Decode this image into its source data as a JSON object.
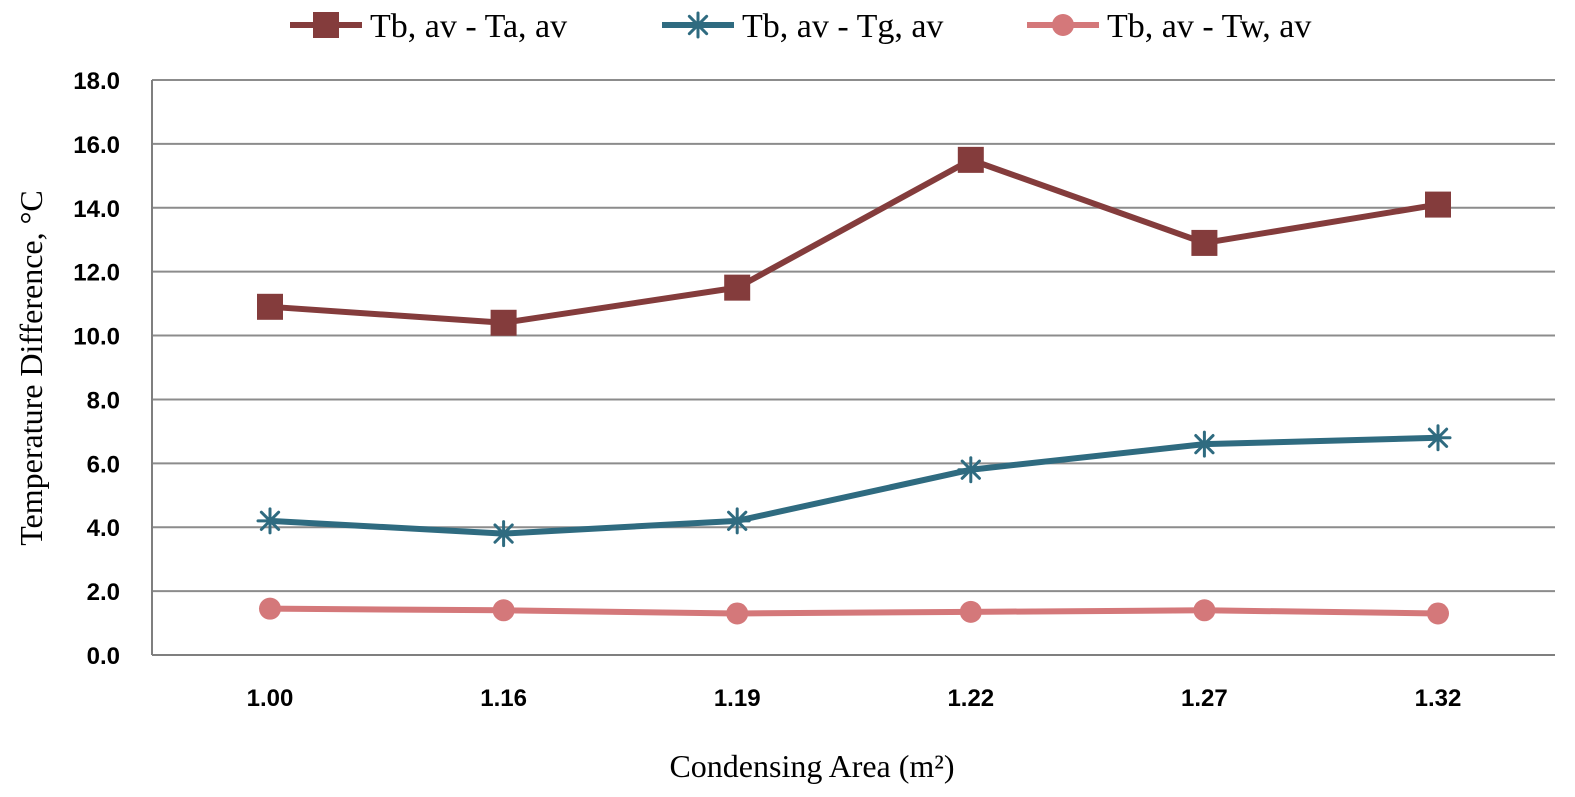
{
  "chart_data": {
    "type": "line",
    "categories": [
      "1.00",
      "1.16",
      "1.19",
      "1.22",
      "1.27",
      "1.32"
    ],
    "series": [
      {
        "name": "Tb, av - Ta, av",
        "values": [
          10.9,
          10.4,
          11.5,
          15.5,
          12.9,
          14.1
        ],
        "color": "#843c3c",
        "marker": "square"
      },
      {
        "name": "Tb, av - Tg, av",
        "values": [
          4.2,
          3.8,
          4.2,
          5.8,
          6.6,
          6.8
        ],
        "color": "#2f6b80",
        "marker": "asterisk"
      },
      {
        "name": "Tb, av - Tw, av",
        "values": [
          1.45,
          1.4,
          1.3,
          1.35,
          1.4,
          1.3
        ],
        "color": "#d4787a",
        "marker": "circle"
      }
    ],
    "yticks": [
      "0.0",
      "2.0",
      "4.0",
      "6.0",
      "8.0",
      "10.0",
      "12.0",
      "14.0",
      "16.0",
      "18.0"
    ],
    "ylim": [
      0,
      18
    ],
    "xlabel": "Condensing Area (m²)",
    "ylabel": "Temperature Difference,   °C",
    "grid": "horizontal",
    "legend": "top"
  }
}
